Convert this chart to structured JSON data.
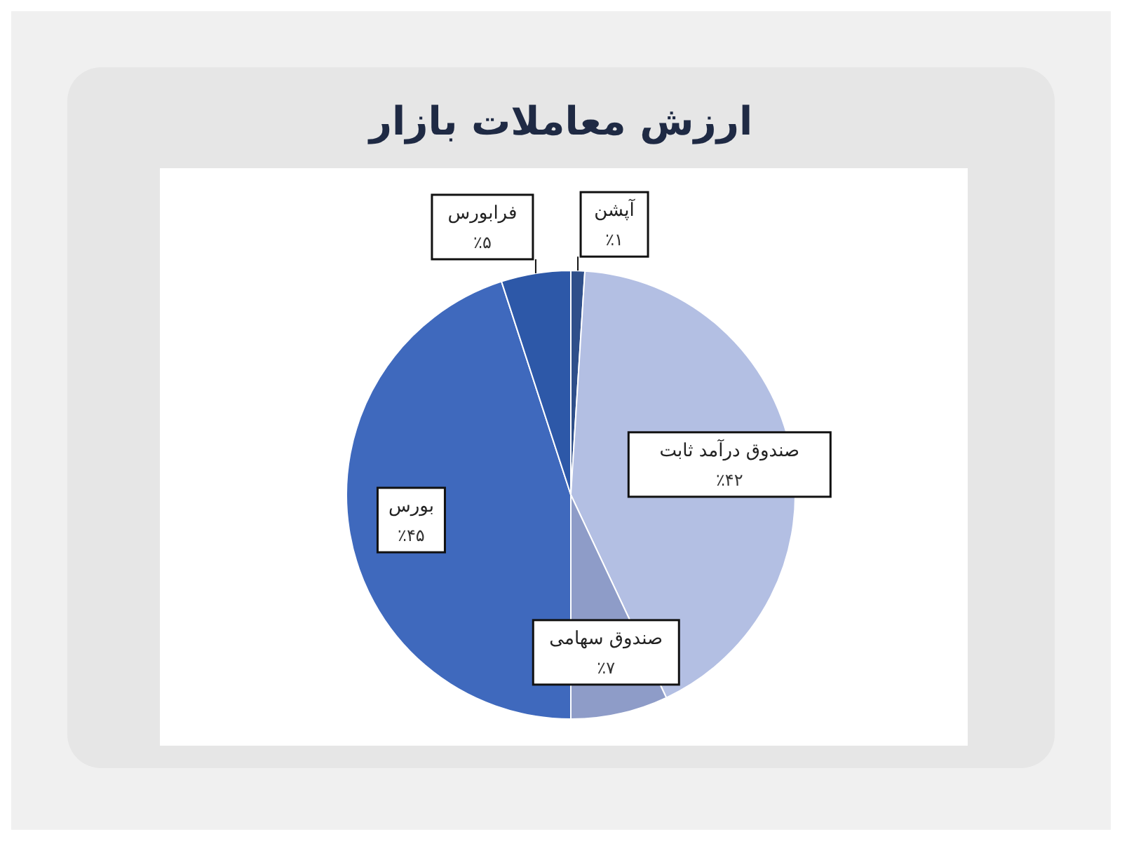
{
  "chart_data": {
    "type": "pie",
    "title": "ارزش معاملات بازار",
    "categories": [
      "آپشن",
      "صندوق درآمد ثابت",
      "صندوق سهامی",
      "بورس",
      "فرابورس"
    ],
    "values": [
      1,
      42,
      7,
      45,
      5
    ],
    "value_labels": [
      "٪۱",
      "٪۴۲",
      "٪۷",
      "٪۴۵",
      "٪۵"
    ],
    "colors": [
      "#2f4f8a",
      "#b3bfe3",
      "#8e9cc8",
      "#3f69bd",
      "#2d58a8"
    ]
  }
}
